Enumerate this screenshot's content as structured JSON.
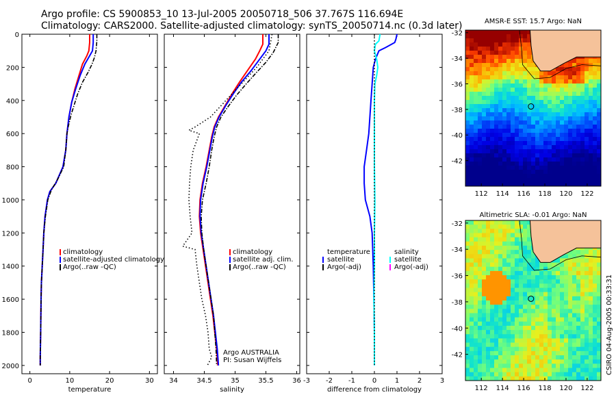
{
  "title_line1": "Argo profile: CS 5900853_10 13-Jul-2005 20050718_506 37.767S 116.694E",
  "title_line2": "Climatology: CARS2000. Satellite-adjusted climatology: synTS_20050714.nc (0.3d later)",
  "colors": {
    "climatology": "#ff0000",
    "satellite": "#0000ff",
    "argo": "#000000",
    "salinity_satellite": "#00ffff",
    "salinity_argo": "#ff00ff",
    "land": "#f5c29a"
  },
  "credit": "CSIRO 04-Aug-2005 00:33:31",
  "chart_data": [
    {
      "type": "line",
      "id": "temperature",
      "xlabel": "temperature",
      "ylabel": "",
      "xlim": [
        -2,
        32
      ],
      "ylim": [
        2050,
        0
      ],
      "xticks": [
        0,
        10,
        20,
        30
      ],
      "yticks": [
        0,
        200,
        400,
        600,
        800,
        1000,
        1200,
        1400,
        1600,
        1800,
        2000
      ],
      "legend": {
        "position": "lower-middle",
        "entries": [
          "climatology",
          "satellite-adjusted climatology",
          "Argo(..raw -QC)"
        ]
      },
      "series": [
        {
          "name": "climatology",
          "style": "solid",
          "color": "#ff0000",
          "points": [
            [
              15.0,
              0
            ],
            [
              15.0,
              50
            ],
            [
              14.8,
              100
            ],
            [
              14.3,
              130
            ],
            [
              13.2,
              180
            ],
            [
              12.3,
              250
            ],
            [
              11.3,
              330
            ],
            [
              10.5,
              410
            ],
            [
              9.8,
              500
            ],
            [
              9.3,
              600
            ],
            [
              9.0,
              700
            ],
            [
              8.3,
              800
            ],
            [
              6.5,
              900
            ],
            [
              5.0,
              950
            ],
            [
              4.4,
              1000
            ],
            [
              3.8,
              1100
            ],
            [
              3.5,
              1200
            ],
            [
              3.3,
              1300
            ],
            [
              3.1,
              1400
            ],
            [
              2.9,
              1500
            ],
            [
              2.8,
              1600
            ],
            [
              2.7,
              1800
            ],
            [
              2.6,
              1950
            ],
            [
              2.6,
              2000
            ]
          ]
        },
        {
          "name": "satellite-adjusted climatology",
          "style": "solid",
          "color": "#0000ff",
          "points": [
            [
              15.9,
              0
            ],
            [
              15.9,
              50
            ],
            [
              15.7,
              100
            ],
            [
              15.0,
              130
            ],
            [
              13.8,
              180
            ],
            [
              12.6,
              250
            ],
            [
              11.5,
              330
            ],
            [
              10.5,
              410
            ],
            [
              9.8,
              500
            ],
            [
              9.3,
              600
            ],
            [
              9.0,
              700
            ],
            [
              8.3,
              800
            ],
            [
              6.5,
              900
            ],
            [
              5.0,
              950
            ],
            [
              4.4,
              1000
            ],
            [
              3.8,
              1100
            ],
            [
              3.5,
              1200
            ],
            [
              3.3,
              1300
            ],
            [
              3.1,
              1400
            ],
            [
              2.9,
              1500
            ],
            [
              2.8,
              1600
            ],
            [
              2.7,
              1800
            ],
            [
              2.6,
              1950
            ],
            [
              2.6,
              2000
            ]
          ]
        },
        {
          "name": "Argo(..raw -QC)",
          "style": "dashdot",
          "color": "#000000",
          "points": [
            [
              16.8,
              0
            ],
            [
              16.8,
              40
            ],
            [
              16.6,
              100
            ],
            [
              16.2,
              140
            ],
            [
              15.6,
              180
            ],
            [
              14.6,
              230
            ],
            [
              13.2,
              290
            ],
            [
              12.0,
              360
            ],
            [
              11.2,
              420
            ],
            [
              10.3,
              490
            ],
            [
              9.6,
              560
            ],
            [
              9.3,
              600
            ],
            [
              9.0,
              700
            ],
            [
              8.5,
              800
            ],
            [
              6.9,
              880
            ],
            [
              5.4,
              940
            ],
            [
              4.5,
              1000
            ],
            [
              3.9,
              1100
            ],
            [
              3.5,
              1200
            ],
            [
              3.3,
              1300
            ],
            [
              3.1,
              1400
            ],
            [
              2.9,
              1500
            ],
            [
              2.8,
              1600
            ],
            [
              2.7,
              1800
            ],
            [
              2.6,
              1950
            ],
            [
              2.6,
              2000
            ]
          ]
        }
      ]
    },
    {
      "type": "line",
      "id": "salinity",
      "xlabel": "salinity",
      "ylabel": "",
      "xlim": [
        33.85,
        36.05
      ],
      "ylim": [
        2050,
        0
      ],
      "xticks": [
        34,
        34.5,
        35,
        35.5,
        36
      ],
      "yticks": [],
      "legend": {
        "position": "lower-middle",
        "entries": [
          "climatology",
          "satellite adj. clim.",
          "Argo(..raw -QC)"
        ]
      },
      "annotation": [
        "Argo AUSTRALIA",
        "PI: Susan Wijffels"
      ],
      "series": [
        {
          "name": "climatology",
          "style": "solid",
          "color": "#ff0000",
          "points": [
            [
              35.45,
              0
            ],
            [
              35.45,
              60
            ],
            [
              35.4,
              100
            ],
            [
              35.33,
              150
            ],
            [
              35.2,
              220
            ],
            [
              35.07,
              290
            ],
            [
              34.95,
              360
            ],
            [
              34.84,
              430
            ],
            [
              34.73,
              500
            ],
            [
              34.66,
              560
            ],
            [
              34.62,
              620
            ],
            [
              34.58,
              700
            ],
            [
              34.53,
              800
            ],
            [
              34.47,
              900
            ],
            [
              34.43,
              1000
            ],
            [
              34.42,
              1100
            ],
            [
              34.44,
              1200
            ],
            [
              34.48,
              1300
            ],
            [
              34.52,
              1400
            ],
            [
              34.56,
              1500
            ],
            [
              34.6,
              1600
            ],
            [
              34.64,
              1700
            ],
            [
              34.67,
              1800
            ],
            [
              34.7,
              1900
            ],
            [
              34.72,
              2000
            ]
          ]
        },
        {
          "name": "satellite adj. clim.",
          "style": "solid",
          "color": "#0000ff",
          "points": [
            [
              35.55,
              0
            ],
            [
              35.55,
              60
            ],
            [
              35.5,
              100
            ],
            [
              35.4,
              150
            ],
            [
              35.26,
              220
            ],
            [
              35.1,
              290
            ],
            [
              34.97,
              360
            ],
            [
              34.85,
              430
            ],
            [
              34.74,
              500
            ],
            [
              34.67,
              560
            ],
            [
              34.63,
              620
            ],
            [
              34.59,
              700
            ],
            [
              34.54,
              800
            ],
            [
              34.48,
              900
            ],
            [
              34.44,
              1000
            ],
            [
              34.43,
              1100
            ],
            [
              34.45,
              1200
            ],
            [
              34.49,
              1300
            ],
            [
              34.53,
              1400
            ],
            [
              34.57,
              1500
            ],
            [
              34.61,
              1600
            ],
            [
              34.65,
              1700
            ],
            [
              34.68,
              1800
            ],
            [
              34.71,
              1900
            ],
            [
              34.73,
              2000
            ]
          ]
        },
        {
          "name": "Argo(..raw -QC)",
          "style": "dashdot",
          "color": "#000000",
          "points": [
            [
              35.7,
              0
            ],
            [
              35.7,
              50
            ],
            [
              35.62,
              110
            ],
            [
              35.5,
              170
            ],
            [
              35.35,
              230
            ],
            [
              35.18,
              300
            ],
            [
              35.02,
              370
            ],
            [
              34.88,
              440
            ],
            [
              34.77,
              500
            ],
            [
              34.7,
              560
            ],
            [
              34.66,
              620
            ],
            [
              34.62,
              700
            ],
            [
              34.58,
              800
            ],
            [
              34.53,
              900
            ],
            [
              34.47,
              1000
            ],
            [
              34.45,
              1100
            ],
            [
              34.46,
              1200
            ],
            [
              34.49,
              1300
            ],
            [
              34.53,
              1400
            ],
            [
              34.57,
              1500
            ],
            [
              34.61,
              1600
            ],
            [
              34.65,
              1700
            ],
            [
              34.67,
              1800
            ],
            [
              34.69,
              1900
            ],
            [
              34.7,
              2000
            ]
          ]
        },
        {
          "name": "",
          "style": "dotted",
          "color": "#000000",
          "points": [
            [
              35.6,
              0
            ],
            [
              35.55,
              100
            ],
            [
              35.35,
              200
            ],
            [
              35.1,
              300
            ],
            [
              34.85,
              400
            ],
            [
              34.6,
              500
            ],
            [
              34.35,
              560
            ],
            [
              34.25,
              580
            ],
            [
              34.42,
              600
            ],
            [
              34.32,
              700
            ],
            [
              34.28,
              800
            ],
            [
              34.26,
              900
            ],
            [
              34.25,
              1000
            ],
            [
              34.27,
              1100
            ],
            [
              34.3,
              1200
            ],
            [
              34.15,
              1280
            ],
            [
              34.35,
              1300
            ],
            [
              34.38,
              1400
            ],
            [
              34.42,
              1500
            ],
            [
              34.46,
              1600
            ],
            [
              34.52,
              1700
            ],
            [
              34.56,
              1800
            ],
            [
              34.58,
              1900
            ],
            [
              34.62,
              1950
            ],
            [
              34.55,
              2000
            ]
          ]
        }
      ]
    },
    {
      "type": "line",
      "id": "difference",
      "xlabel": "difference from climatology",
      "ylabel": "",
      "xlim": [
        -3,
        3
      ],
      "ylim": [
        2050,
        0
      ],
      "xticks": [
        -3,
        -2,
        -1,
        0,
        1,
        2,
        3
      ],
      "yticks": [],
      "legend": {
        "position": "lower-middle",
        "entries": [
          "temperature",
          "satellite",
          "Argo(-adj)",
          "salinity",
          "satellite",
          "Argo(-adj)"
        ]
      },
      "series": [
        {
          "name": "temperature satellite",
          "style": "solid",
          "color": "#0000ff",
          "points": [
            [
              1.0,
              0
            ],
            [
              0.95,
              30
            ],
            [
              0.9,
              50
            ],
            [
              0.5,
              80
            ],
            [
              0.2,
              100
            ],
            [
              0.05,
              150
            ],
            [
              -0.05,
              200
            ],
            [
              -0.1,
              300
            ],
            [
              -0.15,
              400
            ],
            [
              -0.2,
              500
            ],
            [
              -0.25,
              600
            ],
            [
              -0.35,
              700
            ],
            [
              -0.45,
              800
            ],
            [
              -0.45,
              900
            ],
            [
              -0.4,
              1000
            ],
            [
              -0.2,
              1100
            ],
            [
              -0.1,
              1200
            ],
            [
              -0.05,
              1400
            ],
            [
              -0.02,
              1600
            ],
            [
              0.0,
              1800
            ],
            [
              0.0,
              2000
            ]
          ]
        },
        {
          "name": "salinity satellite",
          "style": "solid",
          "color": "#00ffff",
          "points": [
            [
              0.25,
              0
            ],
            [
              0.2,
              40
            ],
            [
              0.05,
              60
            ],
            [
              0.0,
              100
            ],
            [
              0.1,
              150
            ],
            [
              0.15,
              200
            ],
            [
              0.1,
              250
            ],
            [
              0.02,
              300
            ],
            [
              0.0,
              400
            ],
            [
              0.0,
              500
            ],
            [
              0.0,
              600
            ],
            [
              0.0,
              800
            ],
            [
              0.02,
              1000
            ],
            [
              0.0,
              1200
            ],
            [
              0.0,
              1400
            ],
            [
              -0.02,
              1600
            ],
            [
              0.0,
              1800
            ],
            [
              0.0,
              2000
            ]
          ]
        },
        {
          "name": "",
          "style": "dotted",
          "color": "#000000",
          "points": [
            [
              0.0,
              0
            ],
            [
              0.0,
              2000
            ]
          ]
        }
      ]
    }
  ],
  "maps": [
    {
      "id": "sst",
      "title": "AMSR-E SST: 15.7  Argo: NaN",
      "xticks": [
        112,
        114,
        116,
        118,
        120,
        122
      ],
      "yticks": [
        -32,
        -34,
        -36,
        -38,
        -40,
        -42
      ],
      "xlim": [
        110.5,
        123.3
      ],
      "ylim": [
        -44,
        -31.8
      ],
      "argo_lon": 116.694,
      "argo_lat": -37.767
    },
    {
      "id": "sla",
      "title": "Altimetric SLA: -0.01  Argo: NaN",
      "xticks": [
        112,
        114,
        116,
        118,
        120,
        122
      ],
      "yticks": [
        -32,
        -34,
        -36,
        -38,
        -40,
        -42
      ],
      "xlim": [
        110.5,
        123.3
      ],
      "ylim": [
        -44,
        -31.8
      ],
      "argo_lon": 116.694,
      "argo_lat": -37.767
    }
  ]
}
